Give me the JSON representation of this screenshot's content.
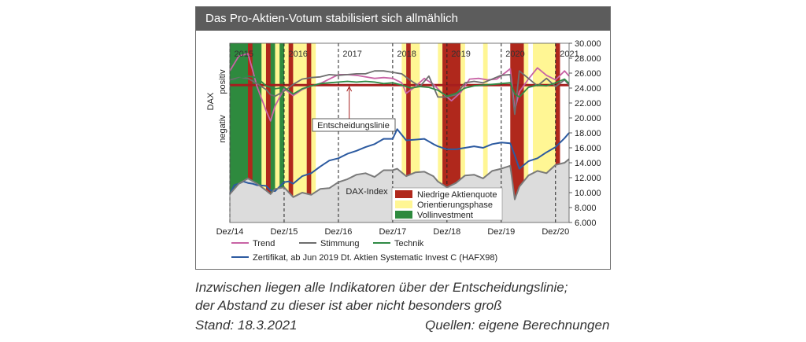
{
  "chart_data": {
    "type": "line",
    "title": "Das Pro-Aktien-Votum stabilisiert sich allmählich",
    "ylabel": "DAX",
    "ylim": [
      6000,
      30000
    ],
    "y_ticks": [
      "30.000",
      "28.000",
      "26.000",
      "24.000",
      "22.000",
      "20.000",
      "18.000",
      "16.000",
      "14.000",
      "12.000",
      "10.000",
      "8.000",
      "6.000"
    ],
    "xlim": [
      "2014-12",
      "2021-03"
    ],
    "x_ticks": [
      "Dez/14",
      "Dez/15",
      "Dez/16",
      "Dez/17",
      "Dez/18",
      "Dez/19",
      "Dez/20"
    ],
    "year_labels": [
      "2015",
      "2016",
      "2017",
      "2018",
      "2019",
      "2020",
      "2021"
    ],
    "indicator_axis": {
      "top": "positiv",
      "bottom": "negativ"
    },
    "decision_line_label": "Entscheidungslinie",
    "dax_label": "DAX-Index",
    "phase_legend": [
      {
        "name": "Niedrige Aktienquote",
        "color": "#b0281c"
      },
      {
        "name": "Orientierungsphase",
        "color": "#fff694"
      },
      {
        "name": "Vollinvestment",
        "color": "#2e8a3e"
      }
    ],
    "phases": [
      {
        "start": "2014-12",
        "end": "2016-01",
        "type": "full"
      },
      {
        "start": "2015-04",
        "end": "2015-05",
        "type": "low"
      },
      {
        "start": "2015-07",
        "end": "2015-08",
        "type": "orient"
      },
      {
        "start": "2015-08",
        "end": "2015-09",
        "type": "low"
      },
      {
        "start": "2015-10",
        "end": "2015-11",
        "type": "orient"
      },
      {
        "start": "2015-12",
        "end": "2016-01",
        "type": "orient"
      },
      {
        "start": "2016-01",
        "end": "2016-02",
        "type": "low"
      },
      {
        "start": "2016-02",
        "end": "2016-05",
        "type": "orient"
      },
      {
        "start": "2016-05",
        "end": "2016-06",
        "type": "low"
      },
      {
        "start": "2016-06",
        "end": "2016-07",
        "type": "orient"
      },
      {
        "start": "2018-02",
        "end": "2018-03",
        "type": "orient"
      },
      {
        "start": "2018-03",
        "end": "2018-04",
        "type": "low"
      },
      {
        "start": "2018-04",
        "end": "2018-06",
        "type": "orient"
      },
      {
        "start": "2018-10",
        "end": "2018-11",
        "type": "orient"
      },
      {
        "start": "2018-11",
        "end": "2019-03",
        "type": "low"
      },
      {
        "start": "2019-03",
        "end": "2019-04",
        "type": "orient"
      },
      {
        "start": "2019-08",
        "end": "2019-09",
        "type": "orient"
      },
      {
        "start": "2020-02",
        "end": "2020-05",
        "type": "low"
      },
      {
        "start": "2020-05",
        "end": "2020-06",
        "type": "orient"
      },
      {
        "start": "2020-07",
        "end": "2020-12",
        "type": "orient"
      },
      {
        "start": "2020-12",
        "end": "2021-01",
        "type": "low"
      }
    ],
    "series": [
      {
        "name": "Trend",
        "color": "#c863a5",
        "kind": "indicator",
        "x": [
          "2014-12",
          "2015-02",
          "2015-04",
          "2015-05",
          "2015-06",
          "2015-08",
          "2015-09",
          "2015-10",
          "2015-12",
          "2016-02",
          "2016-04",
          "2016-06",
          "2016-08",
          "2016-10",
          "2016-12",
          "2017-02",
          "2017-04",
          "2017-06",
          "2017-08",
          "2017-10",
          "2017-12",
          "2018-02",
          "2018-03",
          "2018-05",
          "2018-07",
          "2018-09",
          "2018-11",
          "2019-01",
          "2019-03",
          "2019-05",
          "2019-07",
          "2019-09",
          "2019-11",
          "2020-01",
          "2020-02",
          "2020-03",
          "2020-04",
          "2020-06",
          "2020-08",
          "2020-10",
          "2020-12",
          "2021-02",
          "2021-03"
        ],
        "values": [
          26300,
          28300,
          28600,
          26500,
          24200,
          21000,
          19600,
          21600,
          23900,
          23000,
          23800,
          24300,
          24600,
          25200,
          25800,
          25800,
          25700,
          25500,
          25300,
          25400,
          25300,
          24700,
          23300,
          24200,
          25300,
          24500,
          23300,
          22300,
          23400,
          25200,
          25300,
          25100,
          25200,
          26100,
          26600,
          21100,
          23500,
          25200,
          26700,
          25700,
          25100,
          26300,
          25600
        ]
      },
      {
        "name": "Stimmung",
        "color": "#6e6e6e",
        "kind": "indicator",
        "x": [
          "2014-12",
          "2015-02",
          "2015-04",
          "2015-06",
          "2015-08",
          "2015-09",
          "2015-10",
          "2015-12",
          "2016-02",
          "2016-04",
          "2016-06",
          "2016-08",
          "2016-10",
          "2016-12",
          "2017-02",
          "2017-04",
          "2017-06",
          "2017-08",
          "2017-10",
          "2017-12",
          "2018-02",
          "2018-04",
          "2018-06",
          "2018-08",
          "2018-10",
          "2018-12",
          "2019-02",
          "2019-04",
          "2019-06",
          "2019-08",
          "2019-10",
          "2019-12",
          "2020-02",
          "2020-03",
          "2020-04",
          "2020-06",
          "2020-08",
          "2020-10",
          "2020-12",
          "2021-02",
          "2021-03"
        ],
        "values": [
          25100,
          25400,
          25300,
          24600,
          23800,
          23100,
          22900,
          23600,
          24500,
          25200,
          25400,
          25500,
          25800,
          25700,
          25800,
          25900,
          25900,
          26300,
          26300,
          26100,
          25900,
          25000,
          24200,
          25600,
          22800,
          22800,
          23100,
          24700,
          24900,
          24700,
          25200,
          25700,
          25800,
          20500,
          26300,
          25300,
          24300,
          25300,
          24200,
          25100,
          24400
        ]
      },
      {
        "name": "Technik",
        "color": "#2f8a45",
        "kind": "indicator",
        "x": [
          "2014-12",
          "2015-02",
          "2015-04",
          "2015-06",
          "2015-08",
          "2015-10",
          "2015-12",
          "2016-02",
          "2016-04",
          "2016-06",
          "2016-08",
          "2016-10",
          "2016-12",
          "2017-02",
          "2017-04",
          "2017-06",
          "2017-08",
          "2017-10",
          "2017-12",
          "2018-02",
          "2018-04",
          "2018-06",
          "2018-08",
          "2018-10",
          "2018-12",
          "2019-02",
          "2019-04",
          "2019-06",
          "2019-08",
          "2019-10",
          "2019-12",
          "2020-02",
          "2020-03",
          "2020-04",
          "2020-06",
          "2020-08",
          "2020-10",
          "2020-12",
          "2021-02",
          "2021-03"
        ],
        "values": [
          24800,
          25300,
          25600,
          25400,
          24300,
          23900,
          24100,
          23200,
          23900,
          24300,
          24600,
          24700,
          24800,
          24900,
          24800,
          24900,
          24800,
          24600,
          24700,
          24400,
          24000,
          24200,
          24100,
          23700,
          22900,
          23300,
          24000,
          24300,
          24400,
          24500,
          24600,
          24700,
          23200,
          22800,
          24100,
          24400,
          24300,
          24700,
          25200,
          24600
        ]
      },
      {
        "name": "Zertifikat, ab Jun 2019 Dt. Aktien Systematic Invest C (HAFX98)",
        "color": "#2c5aa0",
        "kind": "price",
        "x": [
          "2014-12",
          "2015-01",
          "2015-02",
          "2015-03",
          "2015-04",
          "2015-05",
          "2015-06",
          "2015-08",
          "2015-09",
          "2015-10",
          "2015-12",
          "2016-01",
          "2016-02",
          "2016-04",
          "2016-06",
          "2016-08",
          "2016-10",
          "2016-12",
          "2017-02",
          "2017-04",
          "2017-06",
          "2017-08",
          "2017-10",
          "2017-12",
          "2018-01",
          "2018-03",
          "2018-05",
          "2018-07",
          "2018-09",
          "2018-10",
          "2018-12",
          "2019-02",
          "2019-04",
          "2019-06",
          "2019-08",
          "2019-10",
          "2019-12",
          "2020-02",
          "2020-03",
          "2020-04",
          "2020-06",
          "2020-08",
          "2020-10",
          "2020-12",
          "2021-02",
          "2021-03"
        ],
        "values": [
          9800,
          11000,
          11200,
          11500,
          11300,
          11200,
          11000,
          10900,
          10300,
          10200,
          11400,
          11500,
          11200,
          12200,
          12600,
          13500,
          14300,
          14600,
          15200,
          15600,
          16100,
          16500,
          17200,
          17200,
          18500,
          17000,
          17100,
          17200,
          16500,
          16200,
          15800,
          15800,
          16000,
          16200,
          16000,
          16500,
          16700,
          16600,
          15000,
          13200,
          14200,
          14600,
          15400,
          16100,
          17300,
          18000
        ]
      },
      {
        "name": "DAX-Index",
        "color": "#7a7a7a",
        "kind": "price",
        "x": [
          "2014-12",
          "2015-02",
          "2015-04",
          "2015-06",
          "2015-08",
          "2015-09",
          "2015-10",
          "2015-12",
          "2016-02",
          "2016-04",
          "2016-06",
          "2016-08",
          "2016-10",
          "2016-12",
          "2017-02",
          "2017-04",
          "2017-06",
          "2017-08",
          "2017-10",
          "2017-12",
          "2018-01",
          "2018-03",
          "2018-05",
          "2018-07",
          "2018-09",
          "2018-10",
          "2018-12",
          "2019-02",
          "2019-04",
          "2019-06",
          "2019-08",
          "2019-10",
          "2019-12",
          "2020-02",
          "2020-03",
          "2020-04",
          "2020-06",
          "2020-08",
          "2020-10",
          "2020-12",
          "2021-02",
          "2021-03"
        ],
        "values": [
          9800,
          11200,
          11900,
          11200,
          10300,
          9800,
          10500,
          10700,
          9400,
          10000,
          9700,
          10500,
          10600,
          11400,
          11800,
          12400,
          12600,
          12100,
          13000,
          13000,
          13200,
          12200,
          12700,
          12800,
          12200,
          11500,
          10700,
          11300,
          12300,
          12400,
          11900,
          12900,
          13200,
          13600,
          9100,
          10800,
          12300,
          12900,
          12600,
          13700,
          14000,
          14500
        ]
      }
    ],
    "legend": [
      "Trend",
      "Stimmung",
      "Technik",
      "Zertifikat, ab Jun 2019 Dt. Aktien Systematic Invest C (HAFX98)"
    ]
  },
  "captions": {
    "line1": "Inzwischen liegen alle Indikatoren über der Entscheidungslinie;",
    "line2": "der Abstand zu dieser ist aber nicht besonders groß",
    "stand": "Stand: 18.3.2021",
    "source": "Quellen: eigene Berechnungen"
  }
}
